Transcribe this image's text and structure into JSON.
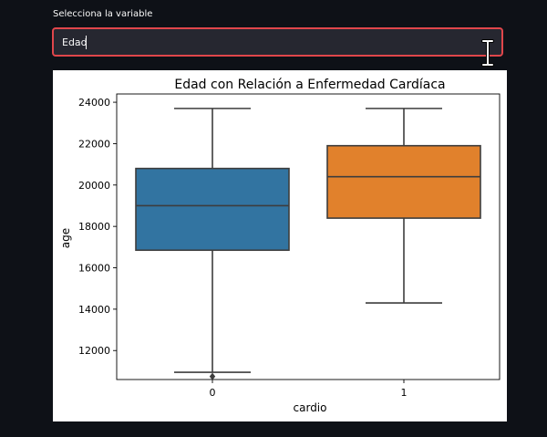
{
  "field": {
    "label": "Selecciona la variable",
    "value": "Edad"
  },
  "chart_data": {
    "type": "box",
    "title": "Edad con Relación a Enfermedad Cardíaca",
    "xlabel": "cardio",
    "ylabel": "age",
    "categories": [
      "0",
      "1"
    ],
    "ylim": [
      10600,
      24400
    ],
    "yticks": [
      12000,
      14000,
      16000,
      18000,
      20000,
      22000,
      24000
    ],
    "grid": false,
    "boxes": [
      {
        "category": "0",
        "whisker_low": 10950,
        "q1": 16850,
        "median": 19000,
        "q3": 20800,
        "whisker_high": 23700,
        "outliers": [
          10750
        ],
        "color": "#3274a1"
      },
      {
        "category": "1",
        "whisker_low": 14300,
        "q1": 18400,
        "median": 20400,
        "q3": 21900,
        "whisker_high": 23700,
        "outliers": [],
        "color": "#e1812c"
      }
    ]
  }
}
